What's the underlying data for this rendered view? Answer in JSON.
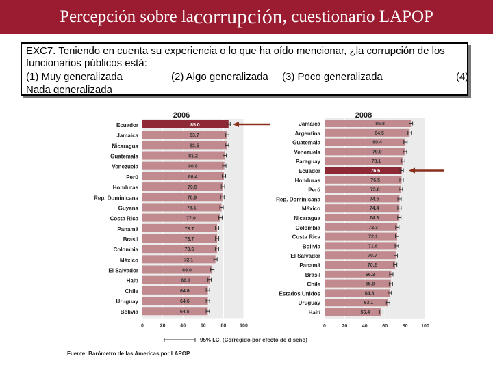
{
  "title": {
    "part1": "Percepción sobre la ",
    "part2": "corrupción",
    "part3": ", cuestionario LAPOP"
  },
  "question": {
    "text": "EXC7. Teniendo en cuenta su experiencia o lo que ha oído mencionar, ¿la corrupción de los funcionarios públicos está:",
    "options": [
      "(1) Muy generalizada",
      "(2) Algo generalizada",
      "(3) Poco generalizada",
      "(4)"
    ],
    "last_line": "Nada generalizada"
  },
  "legend": {
    "label": "95% I.C. (Corregido por efecto de diseño)"
  },
  "footer": {
    "source": "Fuente: Barómetro de las Americas por LAPOP"
  },
  "colors": {
    "bar": "#c08a8e",
    "highlight": "#8e2a35",
    "arrow": "#8b2e1a",
    "title_bg": "#9b1b30"
  },
  "chart_data": [
    {
      "type": "bar",
      "orientation": "horizontal",
      "title": "2006",
      "xlim": [
        0,
        100
      ],
      "xticks": [
        0,
        20,
        40,
        60,
        80,
        100
      ],
      "highlight": "Ecuador",
      "categories": [
        "Ecuador",
        "Jamaica",
        "Nicaragua",
        "Guatemala",
        "Venezuela",
        "Perú",
        "Honduras",
        "Rep. Dominicana",
        "Guyana",
        "Costa Rica",
        "Panamá",
        "Brasil",
        "Colombia",
        "México",
        "El Salvador",
        "Haití",
        "Chile",
        "Uruguay",
        "Bolivia"
      ],
      "values": [
        85.0,
        83.7,
        83.5,
        81.2,
        80.8,
        80.4,
        79.5,
        78.9,
        78.1,
        77.0,
        73.7,
        73.7,
        73.6,
        72.1,
        69.0,
        66.3,
        64.6,
        64.6,
        64.5
      ],
      "labels": [
        "85.0",
        "83.7",
        "83.5",
        "81.2",
        "80.8",
        "80.4",
        "79.5",
        "78.9",
        "78.1",
        "77.0",
        "73.7",
        "73.7",
        "73.6",
        "72.1",
        "69.0",
        "66.3",
        "64.6",
        "64.6",
        "64.5"
      ]
    },
    {
      "type": "bar",
      "orientation": "horizontal",
      "title": "2008",
      "xlim": [
        0,
        100
      ],
      "xticks": [
        0,
        20,
        40,
        60,
        80,
        100
      ],
      "highlight": "Ecuador",
      "categories": [
        "Jamaica",
        "Argentina",
        "Guatemala",
        "Venezuela",
        "Paraguay",
        "Ecuador",
        "Honduras",
        "Perú",
        "Rep. Dominicana",
        "México",
        "Nicaragua",
        "Colombia",
        "Costa Rica",
        "Bolivia",
        "El Salvador",
        "Panamá",
        "Brasil",
        "Chile",
        "Estados Unidos",
        "Uruguay",
        "Haití"
      ],
      "values": [
        85.8,
        84.5,
        80.4,
        79.9,
        78.1,
        76.6,
        76.5,
        75.8,
        74.5,
        74.4,
        74.3,
        72.3,
        72.1,
        71.8,
        70.7,
        70.2,
        66.3,
        65.9,
        64.8,
        63.1,
        56.4
      ],
      "labels": [
        "85.8",
        "84.5",
        "80.4",
        "79.9",
        "78.1",
        "76.6",
        "76.5",
        "75.8",
        "74.5",
        "74.4",
        "74.3",
        "72.3",
        "72.1",
        "71.8",
        "70.7",
        "70.2",
        "66.3",
        "65.9",
        "64.8",
        "63.1",
        "56.4"
      ]
    }
  ]
}
